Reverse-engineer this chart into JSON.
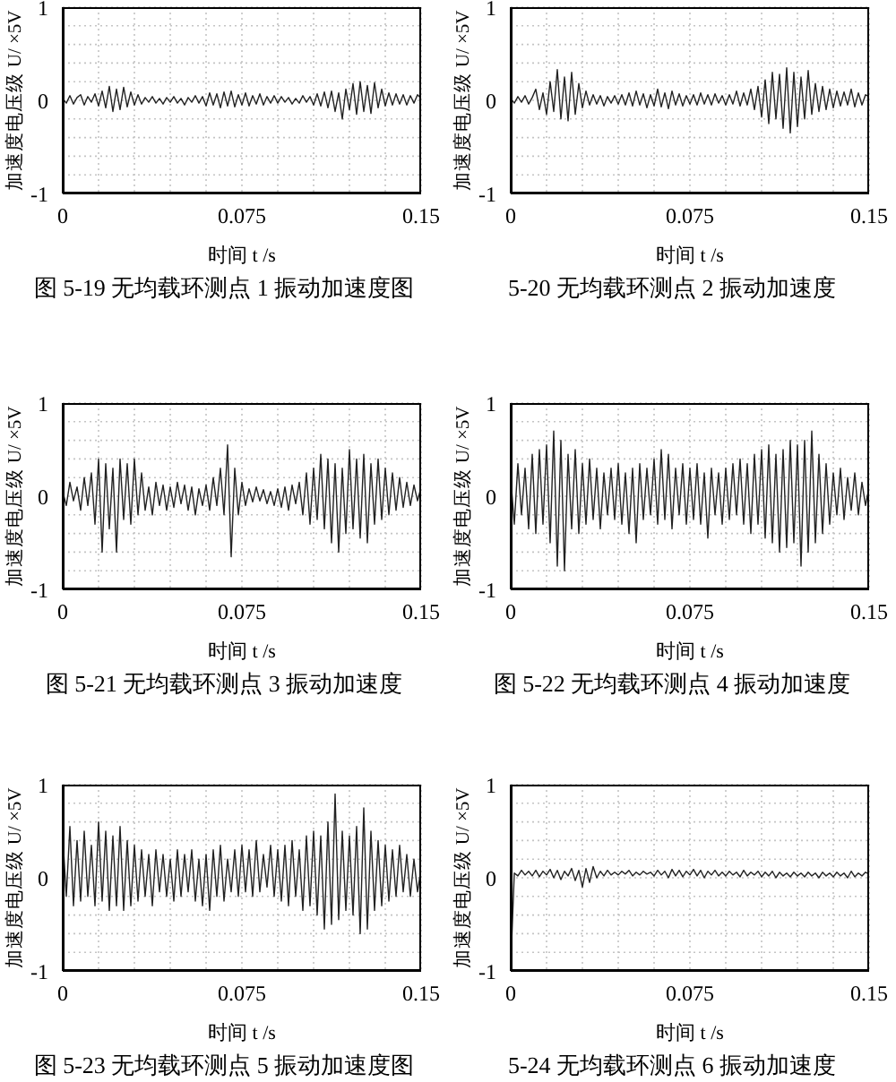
{
  "chart_data": [
    {
      "type": "line",
      "title": "图 5-19 无均载环测点 1 振动加速度图",
      "xlabel": "时间 t /s",
      "ylabel": "加速度电压级 U/ ×5V",
      "grid": true,
      "color": "#222222",
      "x": [
        0,
        0.0015,
        0.003,
        0.0045,
        0.006,
        0.0075,
        0.009,
        0.0105,
        0.012,
        0.0135,
        0.015,
        0.0165,
        0.018,
        0.0195,
        0.021,
        0.0225,
        0.024,
        0.0255,
        0.027,
        0.0285,
        0.03,
        0.0315,
        0.033,
        0.0345,
        0.036,
        0.0375,
        0.039,
        0.0405,
        0.042,
        0.0435,
        0.045,
        0.0465,
        0.048,
        0.0495,
        0.051,
        0.0525,
        0.054,
        0.0555,
        0.057,
        0.0585,
        0.06,
        0.0615,
        0.063,
        0.0645,
        0.066,
        0.0675,
        0.069,
        0.0705,
        0.072,
        0.0735,
        0.075,
        0.0765,
        0.078,
        0.0795,
        0.081,
        0.0825,
        0.084,
        0.0855,
        0.087,
        0.0885,
        0.09,
        0.0915,
        0.093,
        0.0945,
        0.096,
        0.0975,
        0.099,
        0.1005,
        0.102,
        0.1035,
        0.105,
        0.1065,
        0.108,
        0.1095,
        0.111,
        0.1125,
        0.114,
        0.1155,
        0.117,
        0.1185,
        0.12,
        0.1215,
        0.123,
        0.1245,
        0.126,
        0.1275,
        0.129,
        0.1305,
        0.132,
        0.1335,
        0.135,
        0.1365,
        0.138,
        0.1395,
        0.141,
        0.1425,
        0.144,
        0.1455,
        0.147,
        0.1485,
        0.15
      ],
      "values": [
        0.02,
        -0.03,
        0.05,
        -0.04,
        0.03,
        0.06,
        -0.05,
        0.04,
        -0.02,
        0.07,
        -0.06,
        0.1,
        -0.08,
        0.15,
        -0.12,
        0.12,
        -0.1,
        0.14,
        -0.07,
        0.09,
        -0.05,
        0.06,
        -0.04,
        0.03,
        -0.02,
        0.04,
        -0.03,
        0.02,
        -0.04,
        0.03,
        -0.02,
        0.04,
        -0.03,
        0.02,
        -0.05,
        0.03,
        -0.02,
        0.05,
        -0.03,
        0.04,
        -0.06,
        0.08,
        -0.05,
        0.07,
        -0.08,
        0.09,
        -0.06,
        0.1,
        -0.07,
        0.06,
        -0.05,
        0.08,
        -0.06,
        0.05,
        -0.04,
        0.07,
        -0.05,
        0.04,
        -0.03,
        0.05,
        -0.03,
        0.04,
        -0.02,
        0.03,
        -0.04,
        0.02,
        -0.03,
        0.05,
        -0.02,
        0.04,
        -0.05,
        0.07,
        -0.06,
        0.09,
        -0.08,
        0.1,
        -0.12,
        0.08,
        -0.2,
        0.12,
        -0.1,
        0.18,
        -0.15,
        0.2,
        -0.12,
        0.16,
        -0.14,
        0.19,
        -0.08,
        0.12,
        -0.06,
        0.08,
        -0.05,
        0.07,
        -0.04,
        0.06,
        -0.05,
        0.05,
        -0.03,
        0.06,
        0.02
      ],
      "xlim": [
        0,
        0.15
      ],
      "xticks": [
        0,
        {
          "value": 0.015,
          "label": null
        },
        {
          "value": 0.03,
          "label": null
        },
        {
          "value": 0.045,
          "label": null
        },
        {
          "value": 0.06,
          "label": null
        },
        0.075,
        {
          "value": 0.09,
          "label": null
        },
        {
          "value": 0.105,
          "label": null
        },
        {
          "value": 0.12,
          "label": null
        },
        {
          "value": 0.135,
          "label": null
        },
        0.15
      ],
      "ylim": [
        -1,
        1
      ],
      "yticks": [
        -1,
        {
          "value": -0.8,
          "label": null
        },
        {
          "value": -0.6,
          "label": null
        },
        {
          "value": -0.4,
          "label": null
        },
        {
          "value": -0.2,
          "label": null
        },
        0,
        {
          "value": 0.2,
          "label": null
        },
        {
          "value": 0.4,
          "label": null
        },
        {
          "value": 0.6,
          "label": null
        },
        {
          "value": 0.8,
          "label": null
        },
        1
      ]
    },
    {
      "type": "line",
      "title": "5-20 无均载环测点 2 振动加速度",
      "xlabel": "时间 t /s",
      "ylabel": "加速度电压级 U/ ×5V",
      "grid": true,
      "color": "#222222",
      "x": [
        0,
        0.0015,
        0.003,
        0.0045,
        0.006,
        0.0075,
        0.009,
        0.0105,
        0.012,
        0.0135,
        0.015,
        0.0165,
        0.018,
        0.0195,
        0.021,
        0.0225,
        0.024,
        0.0255,
        0.027,
        0.0285,
        0.03,
        0.0315,
        0.033,
        0.0345,
        0.036,
        0.0375,
        0.039,
        0.0405,
        0.042,
        0.0435,
        0.045,
        0.0465,
        0.048,
        0.0495,
        0.051,
        0.0525,
        0.054,
        0.0555,
        0.057,
        0.0585,
        0.06,
        0.0615,
        0.063,
        0.0645,
        0.066,
        0.0675,
        0.069,
        0.0705,
        0.072,
        0.0735,
        0.075,
        0.0765,
        0.078,
        0.0795,
        0.081,
        0.0825,
        0.084,
        0.0855,
        0.087,
        0.0885,
        0.09,
        0.0915,
        0.093,
        0.0945,
        0.096,
        0.0975,
        0.099,
        0.1005,
        0.102,
        0.1035,
        0.105,
        0.1065,
        0.108,
        0.1095,
        0.111,
        0.1125,
        0.114,
        0.1155,
        0.117,
        0.1185,
        0.12,
        0.1215,
        0.123,
        0.1245,
        0.126,
        0.1275,
        0.129,
        0.1305,
        0.132,
        0.1335,
        0.135,
        0.1365,
        0.138,
        0.1395,
        0.141,
        0.1425,
        0.144,
        0.1455,
        0.147,
        0.1485,
        0.15
      ],
      "values": [
        0.02,
        -0.03,
        0.04,
        -0.02,
        0.05,
        -0.04,
        0.03,
        0.12,
        -0.1,
        0.08,
        -0.15,
        0.2,
        -0.12,
        0.33,
        -0.2,
        0.25,
        -0.22,
        0.3,
        -0.15,
        0.18,
        -0.08,
        0.1,
        -0.05,
        0.06,
        -0.04,
        0.05,
        -0.06,
        0.04,
        -0.03,
        0.05,
        -0.04,
        0.06,
        -0.05,
        0.08,
        -0.06,
        0.1,
        -0.05,
        0.07,
        -0.08,
        0.06,
        -0.06,
        0.12,
        -0.07,
        0.08,
        -0.09,
        0.1,
        -0.05,
        0.07,
        -0.06,
        0.05,
        -0.04,
        0.06,
        -0.05,
        0.08,
        -0.04,
        0.06,
        -0.05,
        0.07,
        -0.03,
        0.05,
        -0.05,
        0.06,
        -0.04,
        0.1,
        -0.06,
        0.08,
        -0.05,
        0.12,
        -0.1,
        0.15,
        -0.18,
        0.22,
        -0.25,
        0.3,
        -0.2,
        0.28,
        -0.3,
        0.35,
        -0.35,
        0.3,
        -0.28,
        0.25,
        -0.2,
        0.32,
        -0.15,
        0.18,
        -0.12,
        0.15,
        -0.1,
        0.12,
        -0.08,
        0.1,
        -0.06,
        0.09,
        -0.05,
        0.12,
        -0.07,
        0.08,
        -0.05,
        0.06,
        0.04
      ],
      "xlim": [
        0,
        0.15
      ],
      "xticks": [
        0,
        {
          "value": 0.015,
          "label": null
        },
        {
          "value": 0.03,
          "label": null
        },
        {
          "value": 0.045,
          "label": null
        },
        {
          "value": 0.06,
          "label": null
        },
        0.075,
        {
          "value": 0.09,
          "label": null
        },
        {
          "value": 0.105,
          "label": null
        },
        {
          "value": 0.12,
          "label": null
        },
        {
          "value": 0.135,
          "label": null
        },
        0.15
      ],
      "ylim": [
        -1,
        1
      ],
      "yticks": [
        -1,
        {
          "value": -0.8,
          "label": null
        },
        {
          "value": -0.6,
          "label": null
        },
        {
          "value": -0.4,
          "label": null
        },
        {
          "value": -0.2,
          "label": null
        },
        0,
        {
          "value": 0.2,
          "label": null
        },
        {
          "value": 0.4,
          "label": null
        },
        {
          "value": 0.6,
          "label": null
        },
        {
          "value": 0.8,
          "label": null
        },
        1
      ]
    },
    {
      "type": "line",
      "title": "图 5-21 无均载环测点 3 振动加速度",
      "xlabel": "时间 t /s",
      "ylabel": "加速度电压级 U/ ×5V",
      "grid": true,
      "color": "#222222",
      "x": [
        0,
        0.0015,
        0.003,
        0.0045,
        0.006,
        0.0075,
        0.009,
        0.0105,
        0.012,
        0.0135,
        0.015,
        0.0165,
        0.018,
        0.0195,
        0.021,
        0.0225,
        0.024,
        0.0255,
        0.027,
        0.0285,
        0.03,
        0.0315,
        0.033,
        0.0345,
        0.036,
        0.0375,
        0.039,
        0.0405,
        0.042,
        0.0435,
        0.045,
        0.0465,
        0.048,
        0.0495,
        0.051,
        0.0525,
        0.054,
        0.0555,
        0.057,
        0.0585,
        0.06,
        0.0615,
        0.063,
        0.0645,
        0.066,
        0.0675,
        0.069,
        0.0705,
        0.072,
        0.0735,
        0.075,
        0.0765,
        0.078,
        0.0795,
        0.081,
        0.0825,
        0.084,
        0.0855,
        0.087,
        0.0885,
        0.09,
        0.0915,
        0.093,
        0.0945,
        0.096,
        0.0975,
        0.099,
        0.1005,
        0.102,
        0.1035,
        0.105,
        0.1065,
        0.108,
        0.1095,
        0.111,
        0.1125,
        0.114,
        0.1155,
        0.117,
        0.1185,
        0.12,
        0.1215,
        0.123,
        0.1245,
        0.126,
        0.1275,
        0.129,
        0.1305,
        0.132,
        0.1335,
        0.135,
        0.1365,
        0.138,
        0.1395,
        0.141,
        0.1425,
        0.144,
        0.1455,
        0.147,
        0.1485,
        0.15
      ],
      "values": [
        0.05,
        -0.1,
        0.15,
        -0.05,
        0.1,
        -0.15,
        0.2,
        -0.1,
        0.25,
        -0.3,
        0.4,
        -0.6,
        0.35,
        -0.35,
        0.3,
        -0.6,
        0.4,
        -0.25,
        0.35,
        -0.3,
        0.4,
        -0.2,
        0.25,
        -0.15,
        0.1,
        -0.2,
        0.15,
        -0.1,
        0.12,
        -0.15,
        0.1,
        -0.12,
        0.15,
        -0.08,
        0.12,
        -0.15,
        0.1,
        -0.2,
        0.08,
        -0.1,
        0.12,
        -0.15,
        0.2,
        -0.1,
        0.3,
        -0.2,
        0.55,
        -0.65,
        0.3,
        -0.2,
        0.15,
        -0.1,
        0.08,
        -0.06,
        0.1,
        -0.05,
        0.07,
        -0.08,
        0.05,
        -0.1,
        0.08,
        -0.12,
        0.1,
        -0.15,
        0.12,
        -0.08,
        0.15,
        -0.2,
        0.25,
        -0.3,
        0.3,
        -0.25,
        0.45,
        -0.35,
        0.4,
        -0.5,
        0.35,
        -0.6,
        0.3,
        -0.4,
        0.5,
        -0.35,
        0.4,
        -0.45,
        0.45,
        -0.5,
        0.35,
        -0.3,
        0.4,
        -0.25,
        0.3,
        -0.2,
        0.25,
        -0.15,
        0.2,
        -0.12,
        0.15,
        -0.1,
        0.12,
        -0.05,
        0.1
      ],
      "xlim": [
        0,
        0.15
      ],
      "xticks": [
        0,
        {
          "value": 0.015,
          "label": null
        },
        {
          "value": 0.03,
          "label": null
        },
        {
          "value": 0.045,
          "label": null
        },
        {
          "value": 0.06,
          "label": null
        },
        0.075,
        {
          "value": 0.09,
          "label": null
        },
        {
          "value": 0.105,
          "label": null
        },
        {
          "value": 0.12,
          "label": null
        },
        {
          "value": 0.135,
          "label": null
        },
        0.15
      ],
      "ylim": [
        -1,
        1
      ],
      "yticks": [
        -1,
        {
          "value": -0.8,
          "label": null
        },
        {
          "value": -0.6,
          "label": null
        },
        {
          "value": -0.4,
          "label": null
        },
        {
          "value": -0.2,
          "label": null
        },
        0,
        {
          "value": 0.2,
          "label": null
        },
        {
          "value": 0.4,
          "label": null
        },
        {
          "value": 0.6,
          "label": null
        },
        {
          "value": 0.8,
          "label": null
        },
        1
      ]
    },
    {
      "type": "line",
      "title": "图 5-22 无均载环测点 4 振动加速度",
      "xlabel": "时间 t /s",
      "ylabel": "加速度电压级 U/ ×5V",
      "grid": true,
      "color": "#222222",
      "x": [
        0,
        0.0015,
        0.003,
        0.0045,
        0.006,
        0.0075,
        0.009,
        0.0105,
        0.012,
        0.0135,
        0.015,
        0.0165,
        0.018,
        0.0195,
        0.021,
        0.0225,
        0.024,
        0.0255,
        0.027,
        0.0285,
        0.03,
        0.0315,
        0.033,
        0.0345,
        0.036,
        0.0375,
        0.039,
        0.0405,
        0.042,
        0.0435,
        0.045,
        0.0465,
        0.048,
        0.0495,
        0.051,
        0.0525,
        0.054,
        0.0555,
        0.057,
        0.0585,
        0.06,
        0.0615,
        0.063,
        0.0645,
        0.066,
        0.0675,
        0.069,
        0.0705,
        0.072,
        0.0735,
        0.075,
        0.0765,
        0.078,
        0.0795,
        0.081,
        0.0825,
        0.084,
        0.0855,
        0.087,
        0.0885,
        0.09,
        0.0915,
        0.093,
        0.0945,
        0.096,
        0.0975,
        0.099,
        0.1005,
        0.102,
        0.1035,
        0.105,
        0.1065,
        0.108,
        0.1095,
        0.111,
        0.1125,
        0.114,
        0.1155,
        0.117,
        0.1185,
        0.12,
        0.1215,
        0.123,
        0.1245,
        0.126,
        0.1275,
        0.129,
        0.1305,
        0.132,
        0.1335,
        0.135,
        0.1365,
        0.138,
        0.1395,
        0.141,
        0.1425,
        0.144,
        0.1455,
        0.147,
        0.1485,
        0.15
      ],
      "values": [
        0.2,
        -0.3,
        0.35,
        -0.2,
        0.3,
        -0.35,
        0.45,
        -0.4,
        0.5,
        -0.3,
        0.55,
        -0.5,
        0.7,
        -0.75,
        0.6,
        -0.8,
        0.45,
        -0.35,
        0.5,
        -0.4,
        0.35,
        -0.3,
        0.4,
        -0.25,
        0.3,
        -0.35,
        0.25,
        -0.2,
        0.3,
        -0.25,
        0.35,
        -0.3,
        0.25,
        -0.4,
        0.3,
        -0.5,
        0.35,
        -0.25,
        0.3,
        -0.2,
        0.4,
        -0.3,
        0.5,
        -0.25,
        0.45,
        -0.35,
        0.3,
        -0.2,
        0.35,
        -0.3,
        0.3,
        -0.25,
        0.35,
        -0.3,
        0.25,
        -0.45,
        0.3,
        -0.2,
        0.25,
        -0.3,
        0.3,
        -0.25,
        0.35,
        -0.2,
        0.4,
        -0.3,
        0.35,
        -0.4,
        0.45,
        -0.3,
        0.5,
        -0.45,
        0.55,
        -0.5,
        0.45,
        -0.6,
        0.5,
        -0.55,
        0.6,
        -0.5,
        0.55,
        -0.75,
        0.6,
        -0.6,
        0.7,
        -0.5,
        0.45,
        -0.4,
        0.35,
        -0.3,
        0.25,
        -0.2,
        0.3,
        -0.25,
        0.2,
        -0.15,
        0.25,
        -0.2,
        0.15,
        -0.1,
        0.1
      ],
      "xlim": [
        0,
        0.15
      ],
      "xticks": [
        0,
        {
          "value": 0.015,
          "label": null
        },
        {
          "value": 0.03,
          "label": null
        },
        {
          "value": 0.045,
          "label": null
        },
        {
          "value": 0.06,
          "label": null
        },
        0.075,
        {
          "value": 0.09,
          "label": null
        },
        {
          "value": 0.105,
          "label": null
        },
        {
          "value": 0.12,
          "label": null
        },
        {
          "value": 0.135,
          "label": null
        },
        0.15
      ],
      "ylim": [
        -1,
        1
      ],
      "yticks": [
        -1,
        {
          "value": -0.8,
          "label": null
        },
        {
          "value": -0.6,
          "label": null
        },
        {
          "value": -0.4,
          "label": null
        },
        {
          "value": -0.2,
          "label": null
        },
        0,
        {
          "value": 0.2,
          "label": null
        },
        {
          "value": 0.4,
          "label": null
        },
        {
          "value": 0.6,
          "label": null
        },
        {
          "value": 0.8,
          "label": null
        },
        1
      ]
    },
    {
      "type": "line",
      "title": "图 5-23 无均载环测点 5 振动加速度图",
      "xlabel": "时间 t /s",
      "ylabel": "加速度电压级 U/ ×5V",
      "grid": true,
      "color": "#222222",
      "x": [
        0,
        0.0015,
        0.003,
        0.0045,
        0.006,
        0.0075,
        0.009,
        0.0105,
        0.012,
        0.0135,
        0.015,
        0.0165,
        0.018,
        0.0195,
        0.021,
        0.0225,
        0.024,
        0.0255,
        0.027,
        0.0285,
        0.03,
        0.0315,
        0.033,
        0.0345,
        0.036,
        0.0375,
        0.039,
        0.0405,
        0.042,
        0.0435,
        0.045,
        0.0465,
        0.048,
        0.0495,
        0.051,
        0.0525,
        0.054,
        0.0555,
        0.057,
        0.0585,
        0.06,
        0.0615,
        0.063,
        0.0645,
        0.066,
        0.0675,
        0.069,
        0.0705,
        0.072,
        0.0735,
        0.075,
        0.0765,
        0.078,
        0.0795,
        0.081,
        0.0825,
        0.084,
        0.0855,
        0.087,
        0.0885,
        0.09,
        0.0915,
        0.093,
        0.0945,
        0.096,
        0.0975,
        0.099,
        0.1005,
        0.102,
        0.1035,
        0.105,
        0.1065,
        0.108,
        0.1095,
        0.111,
        0.1125,
        0.114,
        0.1155,
        0.117,
        0.1185,
        0.12,
        0.1215,
        0.123,
        0.1245,
        0.126,
        0.1275,
        0.129,
        0.1305,
        0.132,
        0.1335,
        0.135,
        0.1365,
        0.138,
        0.1395,
        0.141,
        0.1425,
        0.144,
        0.1455,
        0.147,
        0.1485,
        0.15
      ],
      "values": [
        0.45,
        -0.2,
        0.55,
        -0.3,
        0.4,
        -0.25,
        0.5,
        -0.2,
        0.35,
        -0.3,
        0.6,
        -0.25,
        0.5,
        -0.35,
        0.45,
        -0.3,
        0.55,
        -0.35,
        0.4,
        -0.3,
        0.35,
        -0.25,
        0.3,
        -0.2,
        0.25,
        -0.3,
        0.3,
        -0.15,
        0.25,
        -0.2,
        0.2,
        -0.25,
        0.3,
        -0.2,
        0.25,
        -0.15,
        0.3,
        -0.25,
        0.2,
        -0.3,
        0.25,
        -0.35,
        0.3,
        -0.2,
        0.35,
        -0.25,
        0.2,
        -0.15,
        0.3,
        -0.2,
        0.35,
        -0.15,
        0.3,
        -0.2,
        0.4,
        -0.15,
        0.25,
        -0.1,
        0.35,
        -0.2,
        0.3,
        -0.25,
        0.35,
        -0.3,
        0.4,
        -0.2,
        0.3,
        -0.35,
        0.45,
        -0.3,
        0.5,
        -0.4,
        0.45,
        -0.55,
        0.6,
        -0.5,
        0.9,
        -0.45,
        0.5,
        -0.35,
        0.45,
        -0.4,
        0.55,
        -0.6,
        0.75,
        -0.55,
        0.5,
        -0.35,
        0.4,
        -0.3,
        0.35,
        -0.25,
        0.3,
        -0.2,
        0.35,
        -0.15,
        0.25,
        -0.2,
        0.2,
        -0.15,
        0.1
      ],
      "xlim": [
        0,
        0.15
      ],
      "xticks": [
        0,
        {
          "value": 0.015,
          "label": null
        },
        {
          "value": 0.03,
          "label": null
        },
        {
          "value": 0.045,
          "label": null
        },
        {
          "value": 0.06,
          "label": null
        },
        0.075,
        {
          "value": 0.09,
          "label": null
        },
        {
          "value": 0.105,
          "label": null
        },
        {
          "value": 0.12,
          "label": null
        },
        {
          "value": 0.135,
          "label": null
        },
        0.15
      ],
      "ylim": [
        -1,
        1
      ],
      "yticks": [
        -1,
        {
          "value": -0.8,
          "label": null
        },
        {
          "value": -0.6,
          "label": null
        },
        {
          "value": -0.4,
          "label": null
        },
        {
          "value": -0.2,
          "label": null
        },
        0,
        {
          "value": 0.2,
          "label": null
        },
        {
          "value": 0.4,
          "label": null
        },
        {
          "value": 0.6,
          "label": null
        },
        {
          "value": 0.8,
          "label": null
        },
        1
      ]
    },
    {
      "type": "line",
      "title": "5-24 无均载环测点 6 振动加速度",
      "xlabel": "时间 t /s",
      "ylabel": "加速度电压级 U/ ×5V",
      "grid": true,
      "color": "#222222",
      "x": [
        0,
        0.0015,
        0.003,
        0.0045,
        0.006,
        0.0075,
        0.009,
        0.0105,
        0.012,
        0.0135,
        0.015,
        0.0165,
        0.018,
        0.0195,
        0.021,
        0.0225,
        0.024,
        0.0255,
        0.027,
        0.0285,
        0.03,
        0.0315,
        0.033,
        0.0345,
        0.036,
        0.0375,
        0.039,
        0.0405,
        0.042,
        0.0435,
        0.045,
        0.0465,
        0.048,
        0.0495,
        0.051,
        0.0525,
        0.054,
        0.0555,
        0.057,
        0.0585,
        0.06,
        0.0615,
        0.063,
        0.0645,
        0.066,
        0.0675,
        0.069,
        0.0705,
        0.072,
        0.0735,
        0.075,
        0.0765,
        0.078,
        0.0795,
        0.081,
        0.0825,
        0.084,
        0.0855,
        0.087,
        0.0885,
        0.09,
        0.0915,
        0.093,
        0.0945,
        0.096,
        0.0975,
        0.099,
        0.1005,
        0.102,
        0.1035,
        0.105,
        0.1065,
        0.108,
        0.1095,
        0.111,
        0.1125,
        0.114,
        0.1155,
        0.117,
        0.1185,
        0.12,
        0.1215,
        0.123,
        0.1245,
        0.126,
        0.1275,
        0.129,
        0.1305,
        0.132,
        0.1335,
        0.135,
        0.1365,
        0.138,
        0.1395,
        0.141,
        0.1425,
        0.144,
        0.1455,
        0.147,
        0.1485,
        0.15
      ],
      "values": [
        -0.95,
        0.05,
        0.02,
        0.08,
        0.03,
        0.07,
        0.02,
        0.08,
        0.01,
        0.07,
        0.03,
        0.09,
        0.0,
        0.08,
        -0.02,
        0.07,
        0.02,
        0.1,
        -0.03,
        0.08,
        -0.1,
        0.1,
        -0.05,
        0.12,
        0.0,
        0.07,
        0.02,
        0.08,
        0.03,
        0.06,
        0.03,
        0.07,
        0.04,
        0.08,
        0.02,
        0.06,
        0.03,
        0.07,
        0.04,
        0.06,
        0.02,
        0.08,
        0.03,
        0.07,
        0.0,
        0.09,
        0.02,
        0.08,
        0.01,
        0.07,
        0.03,
        0.09,
        0.02,
        0.08,
        0.0,
        0.07,
        0.03,
        0.08,
        0.02,
        0.06,
        0.02,
        0.07,
        0.03,
        0.06,
        0.01,
        0.08,
        0.02,
        0.06,
        0.03,
        0.07,
        0.01,
        0.06,
        0.02,
        0.07,
        0.0,
        0.06,
        0.02,
        0.05,
        0.01,
        0.06,
        0.02,
        0.05,
        0.01,
        0.06,
        0.02,
        0.05,
        0.0,
        0.06,
        0.02,
        0.05,
        0.01,
        0.06,
        0.02,
        0.05,
        0.0,
        0.07,
        0.01,
        0.05,
        0.02,
        0.06,
        0.04
      ],
      "xlim": [
        0,
        0.15
      ],
      "xticks": [
        0,
        {
          "value": 0.015,
          "label": null
        },
        {
          "value": 0.03,
          "label": null
        },
        {
          "value": 0.045,
          "label": null
        },
        {
          "value": 0.06,
          "label": null
        },
        0.075,
        {
          "value": 0.09,
          "label": null
        },
        {
          "value": 0.105,
          "label": null
        },
        {
          "value": 0.12,
          "label": null
        },
        {
          "value": 0.135,
          "label": null
        },
        0.15
      ],
      "ylim": [
        -1,
        1
      ],
      "yticks": [
        -1,
        {
          "value": -0.8,
          "label": null
        },
        {
          "value": -0.6,
          "label": null
        },
        {
          "value": -0.4,
          "label": null
        },
        {
          "value": -0.2,
          "label": null
        },
        0,
        {
          "value": 0.2,
          "label": null
        },
        {
          "value": 0.4,
          "label": null
        },
        {
          "value": 0.6,
          "label": null
        },
        {
          "value": 0.8,
          "label": null
        },
        1
      ]
    }
  ]
}
